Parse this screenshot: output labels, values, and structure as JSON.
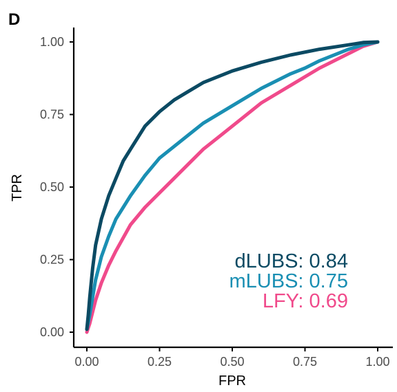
{
  "panel_label": "D",
  "chart_data": {
    "type": "line",
    "title": "",
    "xlabel": "FPR",
    "ylabel": "TPR",
    "xlim": [
      0,
      1
    ],
    "ylim": [
      0,
      1
    ],
    "xticks": [
      "0.00",
      "0.25",
      "0.50",
      "0.75",
      "1.00"
    ],
    "yticks": [
      "0.00",
      "0.25",
      "0.50",
      "0.75",
      "1.00"
    ],
    "grid": false,
    "legend": "none",
    "series": [
      {
        "name": "dLUBS",
        "auc_label": "dLUBS: 0.84",
        "color": "#0b4a63",
        "x": [
          0.0,
          0.005,
          0.01,
          0.02,
          0.03,
          0.05,
          0.075,
          0.1,
          0.125,
          0.15,
          0.2,
          0.25,
          0.3,
          0.35,
          0.4,
          0.5,
          0.6,
          0.7,
          0.8,
          0.9,
          0.95,
          1.0
        ],
        "y": [
          0.01,
          0.06,
          0.12,
          0.22,
          0.3,
          0.39,
          0.47,
          0.53,
          0.59,
          0.63,
          0.71,
          0.76,
          0.8,
          0.83,
          0.86,
          0.9,
          0.93,
          0.955,
          0.975,
          0.99,
          0.998,
          1.0
        ]
      },
      {
        "name": "mLUBS",
        "auc_label": "mLUBS: 0.75",
        "color": "#1a8fb3",
        "x": [
          0.0,
          0.01,
          0.02,
          0.03,
          0.05,
          0.075,
          0.1,
          0.125,
          0.15,
          0.2,
          0.25,
          0.3,
          0.35,
          0.4,
          0.5,
          0.6,
          0.7,
          0.75,
          0.8,
          0.9,
          0.95,
          1.0
        ],
        "y": [
          0.01,
          0.06,
          0.12,
          0.18,
          0.26,
          0.33,
          0.39,
          0.43,
          0.47,
          0.54,
          0.6,
          0.64,
          0.68,
          0.72,
          0.78,
          0.84,
          0.89,
          0.91,
          0.935,
          0.975,
          0.99,
          1.0
        ]
      },
      {
        "name": "LFY",
        "auc_label": "LFY: 0.69",
        "color": "#f04a8b",
        "x": [
          0.0,
          0.01,
          0.02,
          0.03,
          0.05,
          0.075,
          0.1,
          0.15,
          0.2,
          0.25,
          0.3,
          0.35,
          0.4,
          0.45,
          0.5,
          0.6,
          0.7,
          0.75,
          0.8,
          0.9,
          0.95,
          1.0
        ],
        "y": [
          0.0,
          0.03,
          0.07,
          0.11,
          0.17,
          0.23,
          0.28,
          0.37,
          0.43,
          0.48,
          0.53,
          0.58,
          0.63,
          0.67,
          0.71,
          0.79,
          0.85,
          0.88,
          0.91,
          0.96,
          0.985,
          1.0
        ]
      }
    ]
  }
}
